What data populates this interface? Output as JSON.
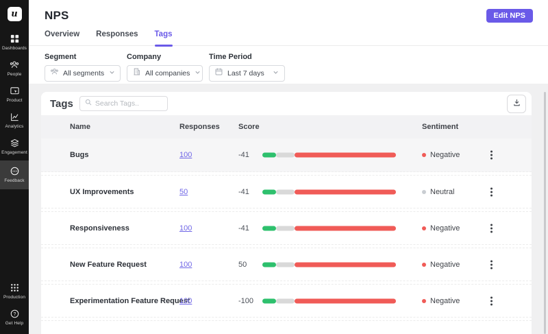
{
  "sidebar": {
    "logo_text": "u",
    "items": [
      {
        "label": "Dashboards",
        "icon": "dashboards-icon"
      },
      {
        "label": "People",
        "icon": "people-icon"
      },
      {
        "label": "Product",
        "icon": "product-icon"
      },
      {
        "label": "Analytics",
        "icon": "analytics-icon"
      },
      {
        "label": "Engagement",
        "icon": "engagement-icon"
      },
      {
        "label": "Feedback",
        "icon": "feedback-icon",
        "active": true
      },
      {
        "label": "Production",
        "icon": "production-icon"
      },
      {
        "label": "Get Help",
        "icon": "get-help-icon"
      }
    ]
  },
  "header": {
    "title": "NPS",
    "edit_button_label": "Edit NPS"
  },
  "tabs": [
    {
      "label": "Overview",
      "active": false
    },
    {
      "label": "Responses",
      "active": false
    },
    {
      "label": "Tags",
      "active": true
    }
  ],
  "filters": [
    {
      "label": "Segment",
      "value": "All segments",
      "icon": "segment-icon"
    },
    {
      "label": "Company",
      "value": "All companies",
      "icon": "company-icon"
    },
    {
      "label": "Time Period",
      "value": "Last 7 days",
      "icon": "calendar-icon"
    }
  ],
  "tags_panel": {
    "title": "Tags",
    "search_placeholder": "Search Tags.."
  },
  "table": {
    "columns": {
      "name": "Name",
      "responses": "Responses",
      "score": "Score",
      "sentiment": "Sentiment"
    },
    "rows": [
      {
        "name": "Bugs",
        "responses": "100",
        "score": "-41",
        "sentiment": "Negative",
        "sentiment_type": "negative",
        "highlighted": true
      },
      {
        "name": "UX Improvements",
        "responses": "50",
        "score": "-41",
        "sentiment": "Neutral",
        "sentiment_type": "neutral"
      },
      {
        "name": "Responsiveness",
        "responses": "100",
        "score": "-41",
        "sentiment": "Negative",
        "sentiment_type": "negative"
      },
      {
        "name": "New Feature Request",
        "responses": "100",
        "score": "50",
        "sentiment": "Negative",
        "sentiment_type": "negative"
      },
      {
        "name": "Experimentation Feature Request",
        "responses": "100",
        "score": "-100",
        "sentiment": "Negative",
        "sentiment_type": "negative"
      }
    ]
  },
  "score_bar": {
    "green_pct": 10.3,
    "gray_pct": 13.8,
    "red_pct": 75.9
  },
  "colors": {
    "accent_purple": "#6A5AE8",
    "link_purple": "#6F66E6",
    "positive_green": "#2EC06D",
    "negative_red": "#F05B57",
    "neutral_gray": "#C9CDD2",
    "sidebar_bg": "#161616",
    "sidebar_active_bg": "#3B3B3B",
    "page_bg": "#F0F0F1"
  }
}
